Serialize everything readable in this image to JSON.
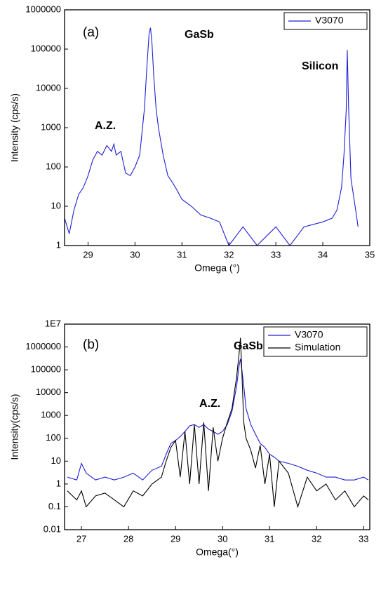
{
  "chart_data": [
    {
      "type": "line",
      "xlabel": "Omega (°)",
      "ylabel": "Intensity (cps/s)",
      "log_y": true,
      "legend": "upper right",
      "annotations": [
        "(a)",
        "GaSb",
        "Silicon",
        "A.Z."
      ],
      "xlim": [
        28.5,
        35
      ],
      "xticks": [
        29,
        30,
        31,
        32,
        33,
        34,
        35
      ],
      "ylim": [
        1,
        1000000
      ],
      "yticks": [
        1,
        10,
        100,
        1000,
        10000,
        100000,
        1000000
      ],
      "x": [
        28.5,
        28.6,
        28.7,
        28.8,
        28.9,
        29.0,
        29.1,
        29.2,
        29.3,
        29.4,
        29.5,
        29.55,
        29.6,
        29.7,
        29.8,
        29.9,
        30.0,
        30.1,
        30.2,
        30.25,
        30.3,
        30.33,
        30.36,
        30.4,
        30.45,
        30.5,
        30.6,
        30.7,
        30.8,
        30.9,
        31.0,
        31.2,
        31.4,
        31.6,
        31.8,
        32.0,
        32.3,
        32.6,
        33.0,
        33.3,
        33.6,
        34.0,
        34.2,
        34.3,
        34.4,
        34.45,
        34.5,
        34.52,
        34.55,
        34.6,
        34.7,
        34.75
      ],
      "series": [
        {
          "name": "V3070",
          "color": "#1f1fd6",
          "values": [
            5,
            2,
            8,
            20,
            30,
            60,
            150,
            250,
            200,
            350,
            250,
            380,
            200,
            250,
            70,
            60,
            100,
            200,
            3000,
            30000,
            250000,
            350000,
            150000,
            20000,
            3000,
            1000,
            200,
            60,
            40,
            25,
            15,
            10,
            6,
            5,
            4,
            1,
            3,
            1,
            3,
            1,
            3,
            4,
            5,
            8,
            30,
            200,
            3000,
            95000,
            3000,
            50,
            8,
            3
          ]
        }
      ]
    },
    {
      "type": "line",
      "xlabel": "Omega(°)",
      "ylabel": "Intensity(cps/s)",
      "log_y": true,
      "legend": "upper right",
      "annotations": [
        "(b)",
        "GaSb",
        "A.Z."
      ],
      "xlim": [
        26.64,
        33.13
      ],
      "xticks": [
        27,
        28,
        29,
        30,
        31,
        32,
        33
      ],
      "ylim": [
        0.01,
        10000000
      ],
      "yticks": [
        0.01,
        0.1,
        1,
        10,
        100,
        1000,
        10000,
        100000,
        1000000,
        {
          "value": 10000000,
          "label": "1E7"
        }
      ],
      "x": [
        26.7,
        26.9,
        27.0,
        27.1,
        27.3,
        27.5,
        27.7,
        27.9,
        28.1,
        28.3,
        28.5,
        28.7,
        28.8,
        28.9,
        29.0,
        29.1,
        29.2,
        29.3,
        29.4,
        29.5,
        29.6,
        29.7,
        29.8,
        29.9,
        30.0,
        30.1,
        30.2,
        30.3,
        30.35,
        30.38,
        30.41,
        30.45,
        30.5,
        30.6,
        30.7,
        30.8,
        30.9,
        31.0,
        31.1,
        31.2,
        31.4,
        31.6,
        31.8,
        32.0,
        32.2,
        32.4,
        32.6,
        32.8,
        33.0,
        33.1
      ],
      "series": [
        {
          "name": "V3070",
          "color": "#1f1fd6",
          "values": [
            2,
            1.5,
            8,
            3,
            1.5,
            2,
            1.5,
            2,
            3,
            1.5,
            4,
            6,
            20,
            60,
            80,
            120,
            200,
            350,
            400,
            300,
            400,
            250,
            200,
            150,
            200,
            400,
            1500,
            20000,
            150000,
            300000,
            100000,
            20000,
            2000,
            400,
            150,
            60,
            40,
            20,
            15,
            10,
            8,
            6,
            4,
            3,
            2,
            2,
            1.5,
            1.5,
            2,
            1.5
          ]
        },
        {
          "name": "Simulation",
          "color": "#000000",
          "values": [
            0.5,
            0.2,
            0.5,
            0.1,
            0.3,
            0.4,
            0.2,
            0.1,
            0.5,
            0.3,
            1,
            2,
            10,
            40,
            80,
            2,
            200,
            1,
            400,
            1,
            500,
            0.5,
            300,
            10,
            100,
            500,
            2000,
            50000,
            500000,
            2500000,
            80000,
            500,
            100,
            30,
            5,
            50,
            1,
            20,
            0.1,
            10,
            3,
            0.1,
            2,
            0.5,
            1,
            0.2,
            0.5,
            0.1,
            0.3,
            0.2
          ]
        }
      ]
    }
  ]
}
